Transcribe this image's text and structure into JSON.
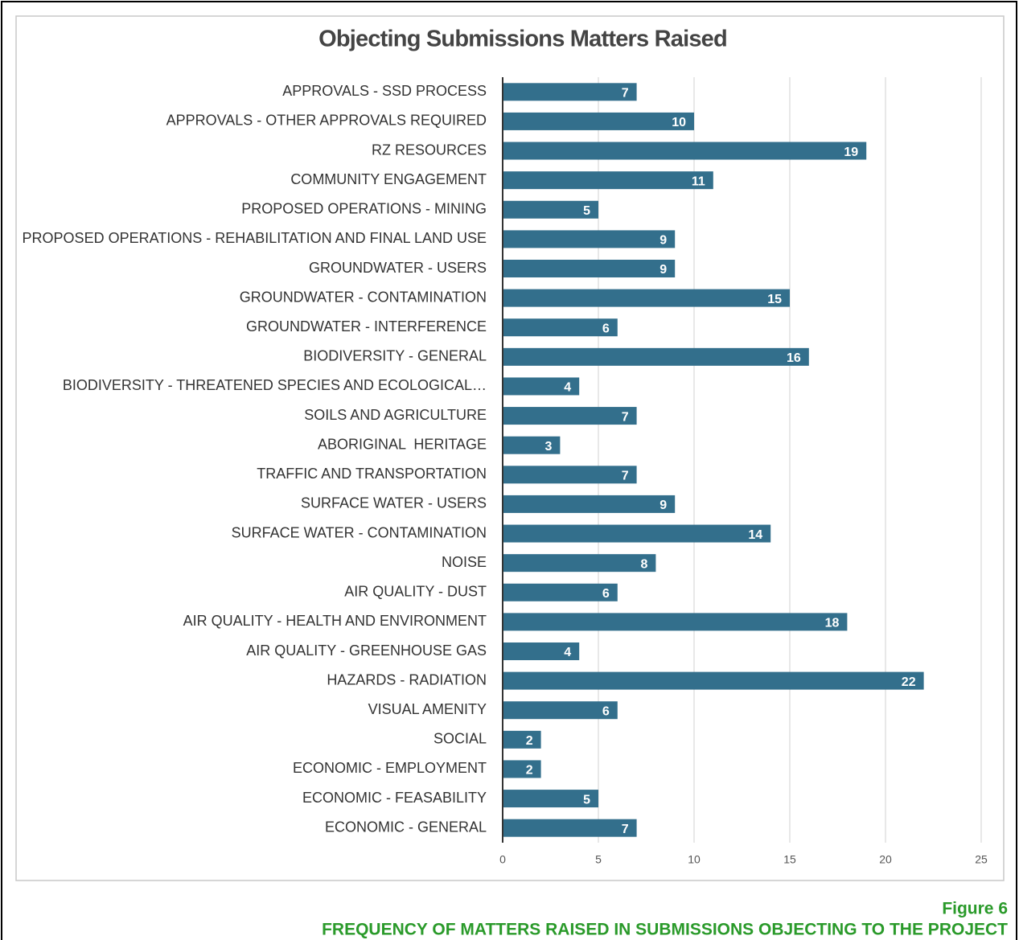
{
  "chart_data": {
    "type": "hbar",
    "title": "Objecting Submissions Matters Raised",
    "categories": [
      "APPROVALS - SSD PROCESS",
      "APPROVALS - OTHER APPROVALS REQUIRED",
      "RZ RESOURCES",
      "COMMUNITY ENGAGEMENT",
      "PROPOSED OPERATIONS - MINING",
      "PROPOSED OPERATIONS - REHABILITATION AND FINAL LAND USE",
      "GROUNDWATER - USERS",
      "GROUNDWATER - CONTAMINATION",
      "GROUNDWATER - INTERFERENCE",
      "BIODIVERSITY - GENERAL",
      "BIODIVERSITY - THREATENED SPECIES AND ECOLOGICAL…",
      "SOILS AND AGRICULTURE",
      "ABORIGINAL  HERITAGE",
      "TRAFFIC AND TRANSPORTATION",
      "SURFACE WATER - USERS",
      "SURFACE WATER - CONTAMINATION",
      "NOISE",
      "AIR QUALITY - DUST",
      "AIR QUALITY - HEALTH AND ENVIRONMENT",
      "AIR QUALITY - GREENHOUSE GAS",
      "HAZARDS - RADIATION",
      "VISUAL AMENITY",
      "SOCIAL",
      "ECONOMIC - EMPLOYMENT",
      "ECONOMIC - FEASABILITY",
      "ECONOMIC - GENERAL"
    ],
    "values": [
      7,
      10,
      19,
      11,
      5,
      9,
      9,
      15,
      6,
      16,
      4,
      7,
      3,
      7,
      9,
      14,
      8,
      6,
      18,
      4,
      22,
      6,
      2,
      2,
      5,
      7
    ],
    "color": "#336f8c",
    "xlim": [
      0,
      25
    ],
    "xticks": [
      0,
      5,
      10,
      15,
      20,
      25
    ],
    "grid": true
  },
  "figure_caption": {
    "label": "Figure 6",
    "title": "FREQUENCY OF MATTERS RAISED IN SUBMISSIONS OBJECTING TO THE PROJECT"
  }
}
